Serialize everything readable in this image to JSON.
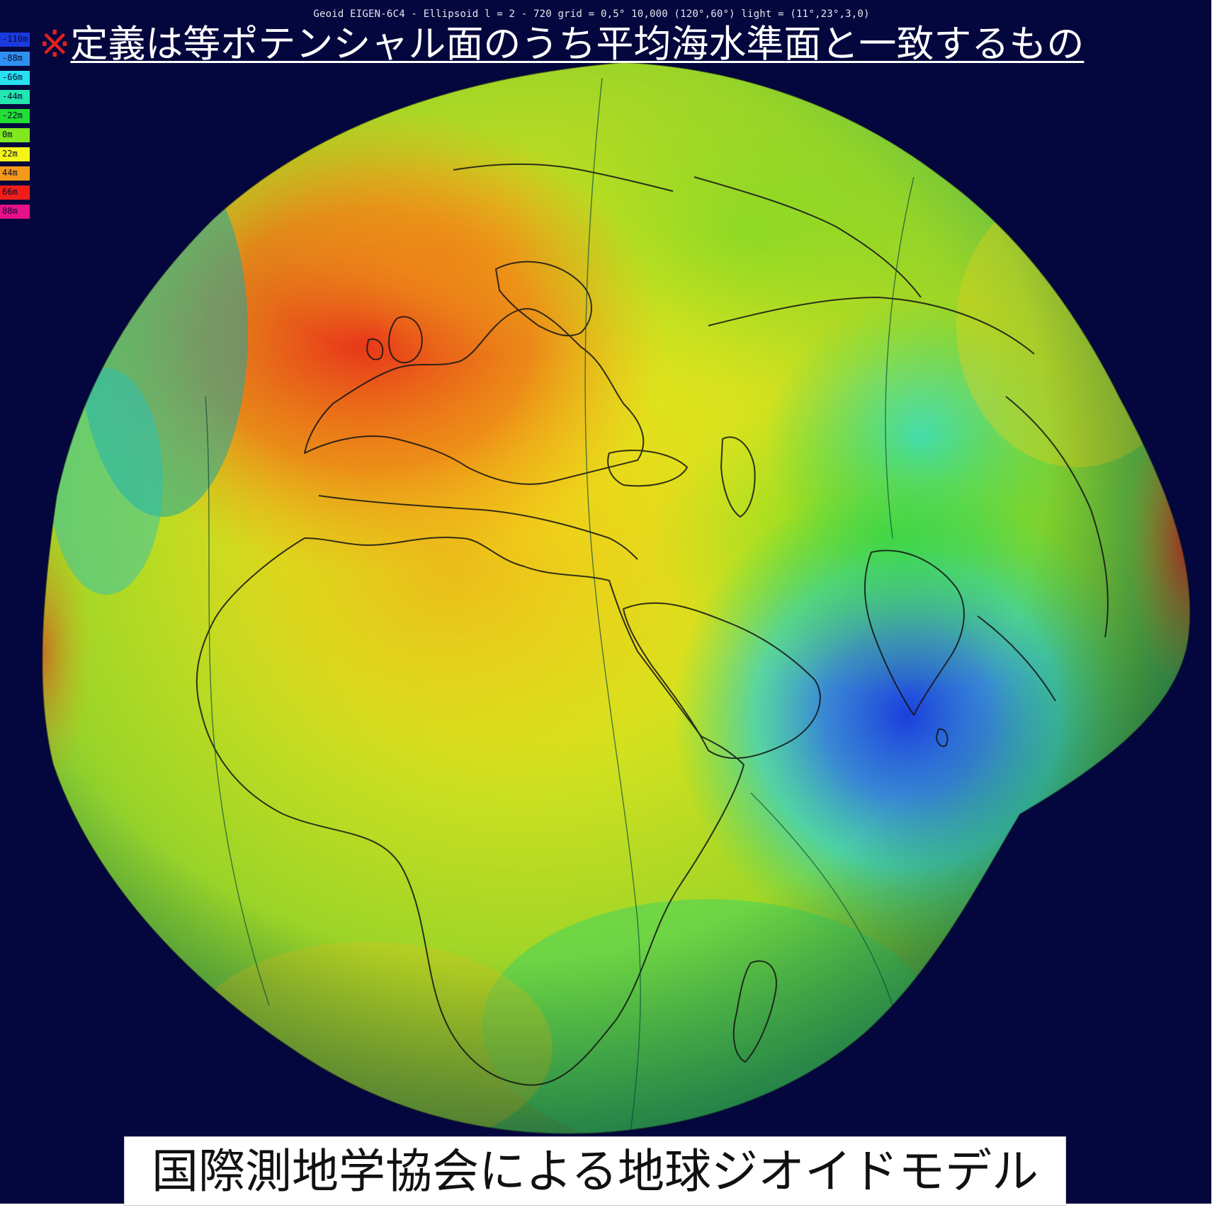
{
  "render_title": "Geoid EIGEN-6C4 - Ellipsoid l = 2 - 720 grid = 0,5° 10,000 (120°,60°) light = (11°,23°,3,0)",
  "headline": {
    "mark": "※",
    "text": "定義は等ポテンシャル面のうち平均海水準面と一致するもの"
  },
  "legend": [
    {
      "label": "-110m",
      "color": "#1a3ae0"
    },
    {
      "label": "-88m",
      "color": "#2f8ff0"
    },
    {
      "label": "-66m",
      "color": "#27e0f0"
    },
    {
      "label": "-44m",
      "color": "#22e8b0"
    },
    {
      "label": "-22m",
      "color": "#22dd33"
    },
    {
      "label": "0m",
      "color": "#7fe81f"
    },
    {
      "label": "22m",
      "color": "#f4f41a"
    },
    {
      "label": "44m",
      "color": "#f49a1a"
    },
    {
      "label": "66m",
      "color": "#ef1e1a"
    },
    {
      "label": "88m",
      "color": "#e8108a"
    }
  ],
  "caption": "国際測地学協会による地球ジオイドモデル",
  "colors": {
    "background": "#04073d",
    "headline_mark": "#e0211f",
    "headline_text": "#ffffff"
  }
}
